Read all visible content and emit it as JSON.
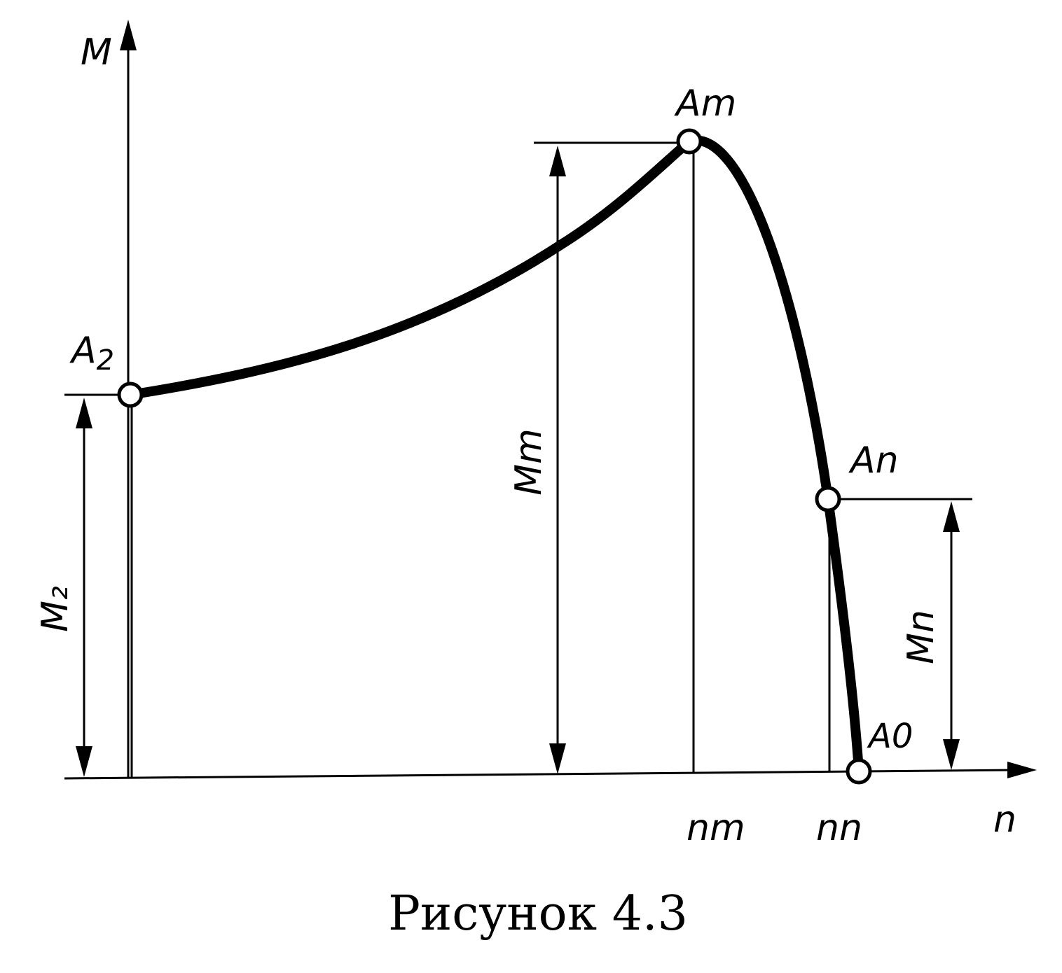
{
  "labels": {
    "y_axis": "M",
    "x_axis": "n",
    "point_A2": "A",
    "point_A2_sub": "2",
    "point_Am": "Am",
    "point_An": "An",
    "point_A0": "A0",
    "dim_M2": "M₂",
    "dim_Mm": "Mm",
    "dim_Mn": "Mn",
    "tick_nm": "nm",
    "tick_nn": "nn"
  },
  "caption": "Рисунок 4.3"
}
